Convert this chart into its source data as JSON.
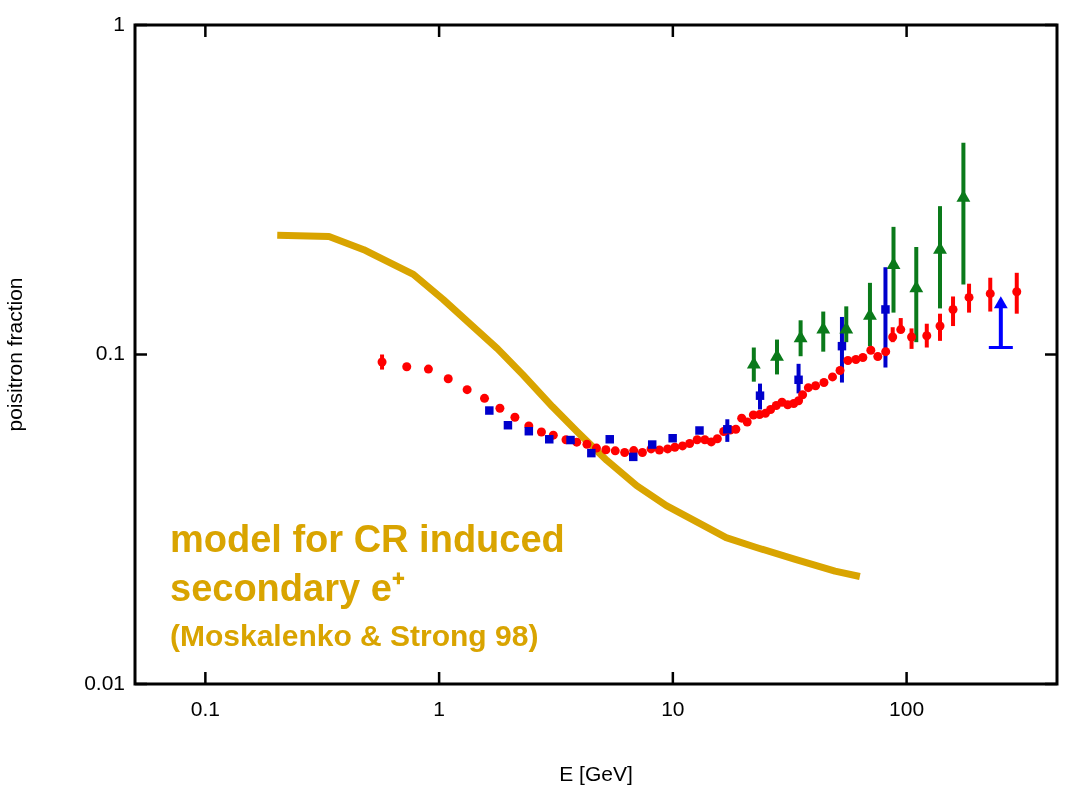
{
  "chart_data": {
    "type": "scatter",
    "xlabel": "E [GeV]",
    "ylabel": "poisitron fraction",
    "log": "xy",
    "grid": false,
    "legend": false,
    "xlim": [
      0.05,
      440
    ],
    "ylim": [
      0.01,
      1
    ],
    "xticks": [
      0.1,
      1,
      10,
      100
    ],
    "yticks": [
      0.01,
      0.1,
      1
    ],
    "annotations": [
      "model for CR induced",
      "secondary e⁺",
      "(Moskalenko & Strong 98)"
    ],
    "series": [
      {
        "type": "line",
        "color": "#d9a400",
        "marker": "none",
        "line_style": "solid",
        "x": [
          0.203,
          0.338,
          0.476,
          0.776,
          1.04,
          1.39,
          1.78,
          2.28,
          3.05,
          3.89,
          5.22,
          7.0,
          9.38,
          12.6,
          16.9,
          22.6,
          33.4,
          49.4,
          63.1
        ],
        "values": [
          0.23,
          0.228,
          0.208,
          0.175,
          0.147,
          0.122,
          0.104,
          0.0869,
          0.0695,
          0.0584,
          0.0477,
          0.04,
          0.0348,
          0.0311,
          0.0278,
          0.026,
          0.0239,
          0.022,
          0.0212
        ]
      },
      {
        "color": "#ff0000",
        "marker": "circle",
        "x": [
          0.57,
          0.727,
          0.9,
          1.094,
          1.318,
          1.564,
          1.82,
          2.11,
          2.42,
          2.74,
          3.08,
          3.49,
          3.88,
          4.29,
          4.71,
          5.17,
          5.67,
          6.22,
          6.8,
          7.41,
          8.07,
          8.76,
          9.5,
          10.2,
          11.0,
          11.8,
          12.7,
          13.7,
          14.6,
          15.5,
          16.5,
          17.6,
          18.6,
          19.7,
          20.8,
          22.1,
          23.5,
          24.9,
          26.2,
          27.7,
          29.3,
          31.0,
          32.9,
          34.5,
          35.9,
          38.0,
          40.8,
          44.3,
          48.2,
          51.9,
          56.1,
          60.7,
          65.0,
          70.3,
          75.3,
          81.4,
          87.2,
          94.4,
          105,
          122,
          139,
          158,
          185,
          228,
          296
        ],
        "values": [
          0.0949,
          0.0918,
          0.0903,
          0.0844,
          0.0782,
          0.0736,
          0.0687,
          0.0645,
          0.0607,
          0.0582,
          0.0569,
          0.0551,
          0.0542,
          0.0534,
          0.052,
          0.0514,
          0.051,
          0.0504,
          0.0511,
          0.0504,
          0.0517,
          0.0513,
          0.0517,
          0.0523,
          0.0528,
          0.0537,
          0.0551,
          0.0551,
          0.0543,
          0.0555,
          0.0584,
          0.059,
          0.0593,
          0.0641,
          0.0624,
          0.0655,
          0.0657,
          0.0663,
          0.0681,
          0.07,
          0.0716,
          0.0704,
          0.071,
          0.0724,
          0.0755,
          0.0793,
          0.0804,
          0.0822,
          0.0855,
          0.0894,
          0.0959,
          0.0966,
          0.0979,
          0.103,
          0.0986,
          0.102,
          0.113,
          0.119,
          0.113,
          0.114,
          0.122,
          0.137,
          0.149,
          0.153,
          0.155
        ],
        "errors": [
          [
            0.09,
            0.1
          ],
          null,
          null,
          null,
          null,
          null,
          null,
          null,
          null,
          null,
          null,
          null,
          null,
          null,
          null,
          null,
          null,
          null,
          null,
          null,
          null,
          null,
          null,
          null,
          null,
          null,
          null,
          null,
          null,
          null,
          null,
          null,
          null,
          null,
          null,
          null,
          null,
          null,
          null,
          null,
          null,
          null,
          null,
          null,
          null,
          null,
          null,
          null,
          null,
          null,
          null,
          null,
          null,
          null,
          null,
          null,
          [
            0.109,
            0.121
          ],
          [
            0.117,
            0.129
          ],
          [
            0.104,
            0.12
          ],
          [
            0.105,
            0.124
          ],
          [
            0.11,
            0.133
          ],
          [
            0.122,
            0.15
          ],
          [
            0.134,
            0.164
          ],
          [
            0.135,
            0.171
          ],
          [
            0.133,
            0.177
          ]
        ]
      },
      {
        "color": "#0000cc",
        "marker": "square",
        "x": [
          1.64,
          1.97,
          2.42,
          2.96,
          3.65,
          4.48,
          5.37,
          6.77,
          8.16,
          9.98,
          13.0,
          17.1,
          23.6,
          34.5,
          52.9,
          81.2
        ],
        "values": [
          0.0676,
          0.061,
          0.0585,
          0.0553,
          0.055,
          0.0502,
          0.0553,
          0.0489,
          0.0533,
          0.0557,
          0.0588,
          0.0593,
          0.075,
          0.0838,
          0.106,
          0.137
        ],
        "errors": [
          null,
          null,
          null,
          null,
          null,
          null,
          null,
          null,
          null,
          null,
          null,
          [
            0.0543,
            0.0636
          ],
          [
            0.0681,
            0.0816
          ],
          [
            0.0762,
            0.0937
          ],
          [
            0.0822,
            0.13
          ],
          [
            0.0913,
            0.184
          ]
        ]
      },
      {
        "color": "#0a7a1a",
        "marker": "triangle",
        "x": [
          22.2,
          27.9,
          35.2,
          44.0,
          55.2,
          69.7,
          87.9,
          110,
          139,
          175
        ],
        "values": [
          0.0933,
          0.0984,
          0.112,
          0.119,
          0.119,
          0.131,
          0.187,
          0.159,
          0.208,
          0.299
        ],
        "errors": [
          [
            0.0827,
            0.105
          ],
          [
            0.087,
            0.111
          ],
          [
            0.0988,
            0.127
          ],
          [
            0.102,
            0.135
          ],
          [
            0.109,
            0.14
          ],
          [
            0.106,
            0.165
          ],
          [
            0.134,
            0.244
          ],
          [
            0.109,
            0.212
          ],
          [
            0.138,
            0.282
          ],
          [
            0.163,
            0.439
          ]
        ]
      },
      {
        "color": "#0000ff",
        "marker": "triangle",
        "x": [
          253
        ],
        "values": [
          0.142
        ],
        "errors": [
          [
            0.105,
            0.142
          ]
        ]
      }
    ]
  }
}
